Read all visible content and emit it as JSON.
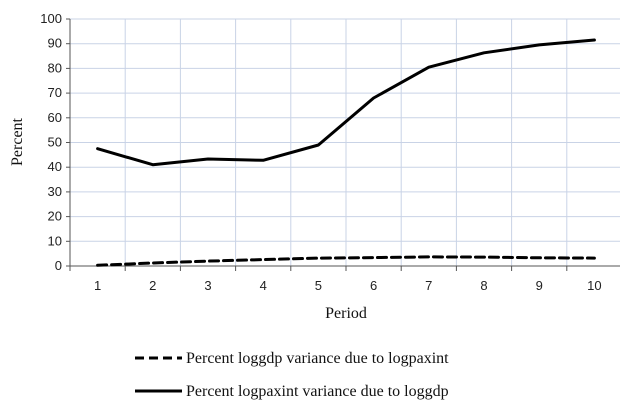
{
  "chart_data": {
    "type": "line",
    "title": "",
    "xlabel": "Period",
    "ylabel": "Percent",
    "x": [
      1,
      2,
      3,
      4,
      5,
      6,
      7,
      8,
      9,
      10
    ],
    "x_ticks": [
      "1",
      "2",
      "3",
      "4",
      "5",
      "6",
      "7",
      "8",
      "9",
      "10"
    ],
    "y_ticks": [
      "0",
      "10",
      "20",
      "30",
      "40",
      "50",
      "60",
      "70",
      "80",
      "90",
      "100"
    ],
    "ylim": [
      0,
      100
    ],
    "grid": true,
    "legend_position": "bottom",
    "series": [
      {
        "name": "Percent loggdp variance due to logpaxint",
        "style": "dashed",
        "color": "#000000",
        "values": [
          0.3,
          1.2,
          2.0,
          2.6,
          3.2,
          3.4,
          3.7,
          3.6,
          3.3,
          3.2
        ]
      },
      {
        "name": "Percent logpaxint variance due to loggdp",
        "style": "solid",
        "color": "#000000",
        "values": [
          47.5,
          41.0,
          43.3,
          42.8,
          49.0,
          68.0,
          80.5,
          86.3,
          89.5,
          91.5
        ]
      }
    ]
  }
}
